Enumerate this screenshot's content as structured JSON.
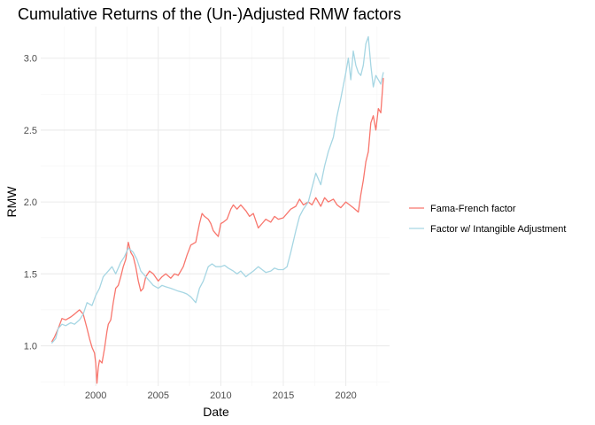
{
  "chart_data": {
    "type": "line",
    "title": "Cumulative Returns of the (Un-)Adjusted RMW factors",
    "xlabel": "Date",
    "ylabel": "RMW",
    "xlim": [
      1995.6,
      2023.5
    ],
    "ylim": [
      0.72,
      3.22
    ],
    "x_ticks": [
      2000,
      2005,
      2010,
      2015,
      2020
    ],
    "x_tick_labels": [
      "2000",
      "2005",
      "2010",
      "2015",
      "2020"
    ],
    "y_ticks": [
      1.0,
      1.5,
      2.0,
      2.5,
      3.0
    ],
    "y_tick_labels": [
      "1.0",
      "1.5",
      "2.0",
      "2.5",
      "3.0"
    ],
    "grid": true,
    "legend_position": "right",
    "series": [
      {
        "name": "Fama-French factor",
        "color": "#F8766D",
        "x": [
          1996.5,
          1996.7,
          1997.0,
          1997.3,
          1997.6,
          1998.0,
          1998.3,
          1998.7,
          1999.0,
          1999.3,
          1999.5,
          1999.7,
          1999.9,
          2000.0,
          2000.1,
          2000.2,
          2000.3,
          2000.5,
          2000.7,
          2000.9,
          2001.0,
          2001.2,
          2001.4,
          2001.6,
          2001.8,
          2002.0,
          2002.2,
          2002.4,
          2002.6,
          2002.8,
          2003.0,
          2003.2,
          2003.4,
          2003.6,
          2003.8,
          2004.0,
          2004.3,
          2004.6,
          2005.0,
          2005.3,
          2005.6,
          2006.0,
          2006.3,
          2006.6,
          2007.0,
          2007.3,
          2007.6,
          2008.0,
          2008.3,
          2008.5,
          2008.7,
          2009.0,
          2009.2,
          2009.4,
          2009.6,
          2009.8,
          2010.0,
          2010.2,
          2010.5,
          2010.8,
          2011.0,
          2011.3,
          2011.6,
          2012.0,
          2012.3,
          2012.6,
          2013.0,
          2013.3,
          2013.6,
          2014.0,
          2014.3,
          2014.6,
          2015.0,
          2015.3,
          2015.6,
          2016.0,
          2016.3,
          2016.6,
          2017.0,
          2017.3,
          2017.6,
          2018.0,
          2018.3,
          2018.6,
          2019.0,
          2019.3,
          2019.6,
          2020.0,
          2020.3,
          2020.6,
          2021.0,
          2021.2,
          2021.4,
          2021.6,
          2021.8,
          2022.0,
          2022.2,
          2022.4,
          2022.6,
          2022.8,
          2023.0
        ],
        "y": [
          1.03,
          1.06,
          1.12,
          1.19,
          1.18,
          1.2,
          1.22,
          1.25,
          1.22,
          1.12,
          1.05,
          0.99,
          0.95,
          0.88,
          0.74,
          0.85,
          0.9,
          0.88,
          0.98,
          1.1,
          1.15,
          1.18,
          1.3,
          1.4,
          1.42,
          1.48,
          1.55,
          1.6,
          1.72,
          1.65,
          1.62,
          1.55,
          1.45,
          1.38,
          1.4,
          1.48,
          1.52,
          1.5,
          1.45,
          1.48,
          1.5,
          1.47,
          1.5,
          1.49,
          1.55,
          1.63,
          1.7,
          1.72,
          1.85,
          1.92,
          1.9,
          1.88,
          1.85,
          1.8,
          1.78,
          1.76,
          1.85,
          1.86,
          1.88,
          1.95,
          1.98,
          1.95,
          1.98,
          1.94,
          1.9,
          1.92,
          1.82,
          1.85,
          1.88,
          1.86,
          1.9,
          1.88,
          1.89,
          1.92,
          1.95,
          1.97,
          2.02,
          1.98,
          2.0,
          1.98,
          2.03,
          1.97,
          2.03,
          2.0,
          2.02,
          1.98,
          1.96,
          2.0,
          1.98,
          1.96,
          1.93,
          2.05,
          2.15,
          2.28,
          2.35,
          2.55,
          2.6,
          2.5,
          2.65,
          2.62,
          2.86
        ]
      },
      {
        "name": "Factor w/ Intangible Adjustment",
        "color": "#A6D6E3",
        "x": [
          1996.5,
          1996.8,
          1997.0,
          1997.3,
          1997.6,
          1998.0,
          1998.3,
          1998.7,
          1999.0,
          1999.3,
          1999.7,
          2000.0,
          2000.3,
          2000.6,
          2001.0,
          2001.3,
          2001.6,
          2002.0,
          2002.3,
          2002.6,
          2003.0,
          2003.3,
          2003.6,
          2004.0,
          2004.3,
          2004.6,
          2005.0,
          2005.3,
          2005.6,
          2006.0,
          2006.3,
          2006.6,
          2007.0,
          2007.3,
          2007.6,
          2008.0,
          2008.3,
          2008.6,
          2009.0,
          2009.3,
          2009.6,
          2010.0,
          2010.3,
          2010.6,
          2011.0,
          2011.3,
          2011.6,
          2012.0,
          2012.3,
          2012.6,
          2013.0,
          2013.3,
          2013.6,
          2014.0,
          2014.3,
          2014.6,
          2015.0,
          2015.3,
          2015.6,
          2016.0,
          2016.3,
          2016.6,
          2017.0,
          2017.3,
          2017.6,
          2018.0,
          2018.3,
          2018.6,
          2019.0,
          2019.3,
          2019.6,
          2020.0,
          2020.2,
          2020.4,
          2020.6,
          2020.8,
          2021.0,
          2021.2,
          2021.4,
          2021.6,
          2021.8,
          2022.0,
          2022.2,
          2022.4,
          2022.6,
          2022.8,
          2023.0
        ],
        "y": [
          1.02,
          1.05,
          1.12,
          1.15,
          1.14,
          1.16,
          1.15,
          1.18,
          1.22,
          1.3,
          1.28,
          1.35,
          1.4,
          1.48,
          1.52,
          1.55,
          1.5,
          1.58,
          1.62,
          1.68,
          1.65,
          1.6,
          1.52,
          1.48,
          1.45,
          1.42,
          1.4,
          1.42,
          1.41,
          1.4,
          1.39,
          1.38,
          1.37,
          1.36,
          1.34,
          1.3,
          1.4,
          1.45,
          1.55,
          1.57,
          1.55,
          1.55,
          1.56,
          1.54,
          1.52,
          1.5,
          1.52,
          1.48,
          1.5,
          1.52,
          1.55,
          1.53,
          1.51,
          1.52,
          1.54,
          1.53,
          1.53,
          1.55,
          1.65,
          1.8,
          1.9,
          1.95,
          2.0,
          2.1,
          2.2,
          2.12,
          2.25,
          2.35,
          2.45,
          2.6,
          2.72,
          2.9,
          3.0,
          2.85,
          3.05,
          2.95,
          2.9,
          2.88,
          2.95,
          3.1,
          3.15,
          2.95,
          2.8,
          2.88,
          2.85,
          2.82,
          2.9
        ]
      }
    ]
  }
}
